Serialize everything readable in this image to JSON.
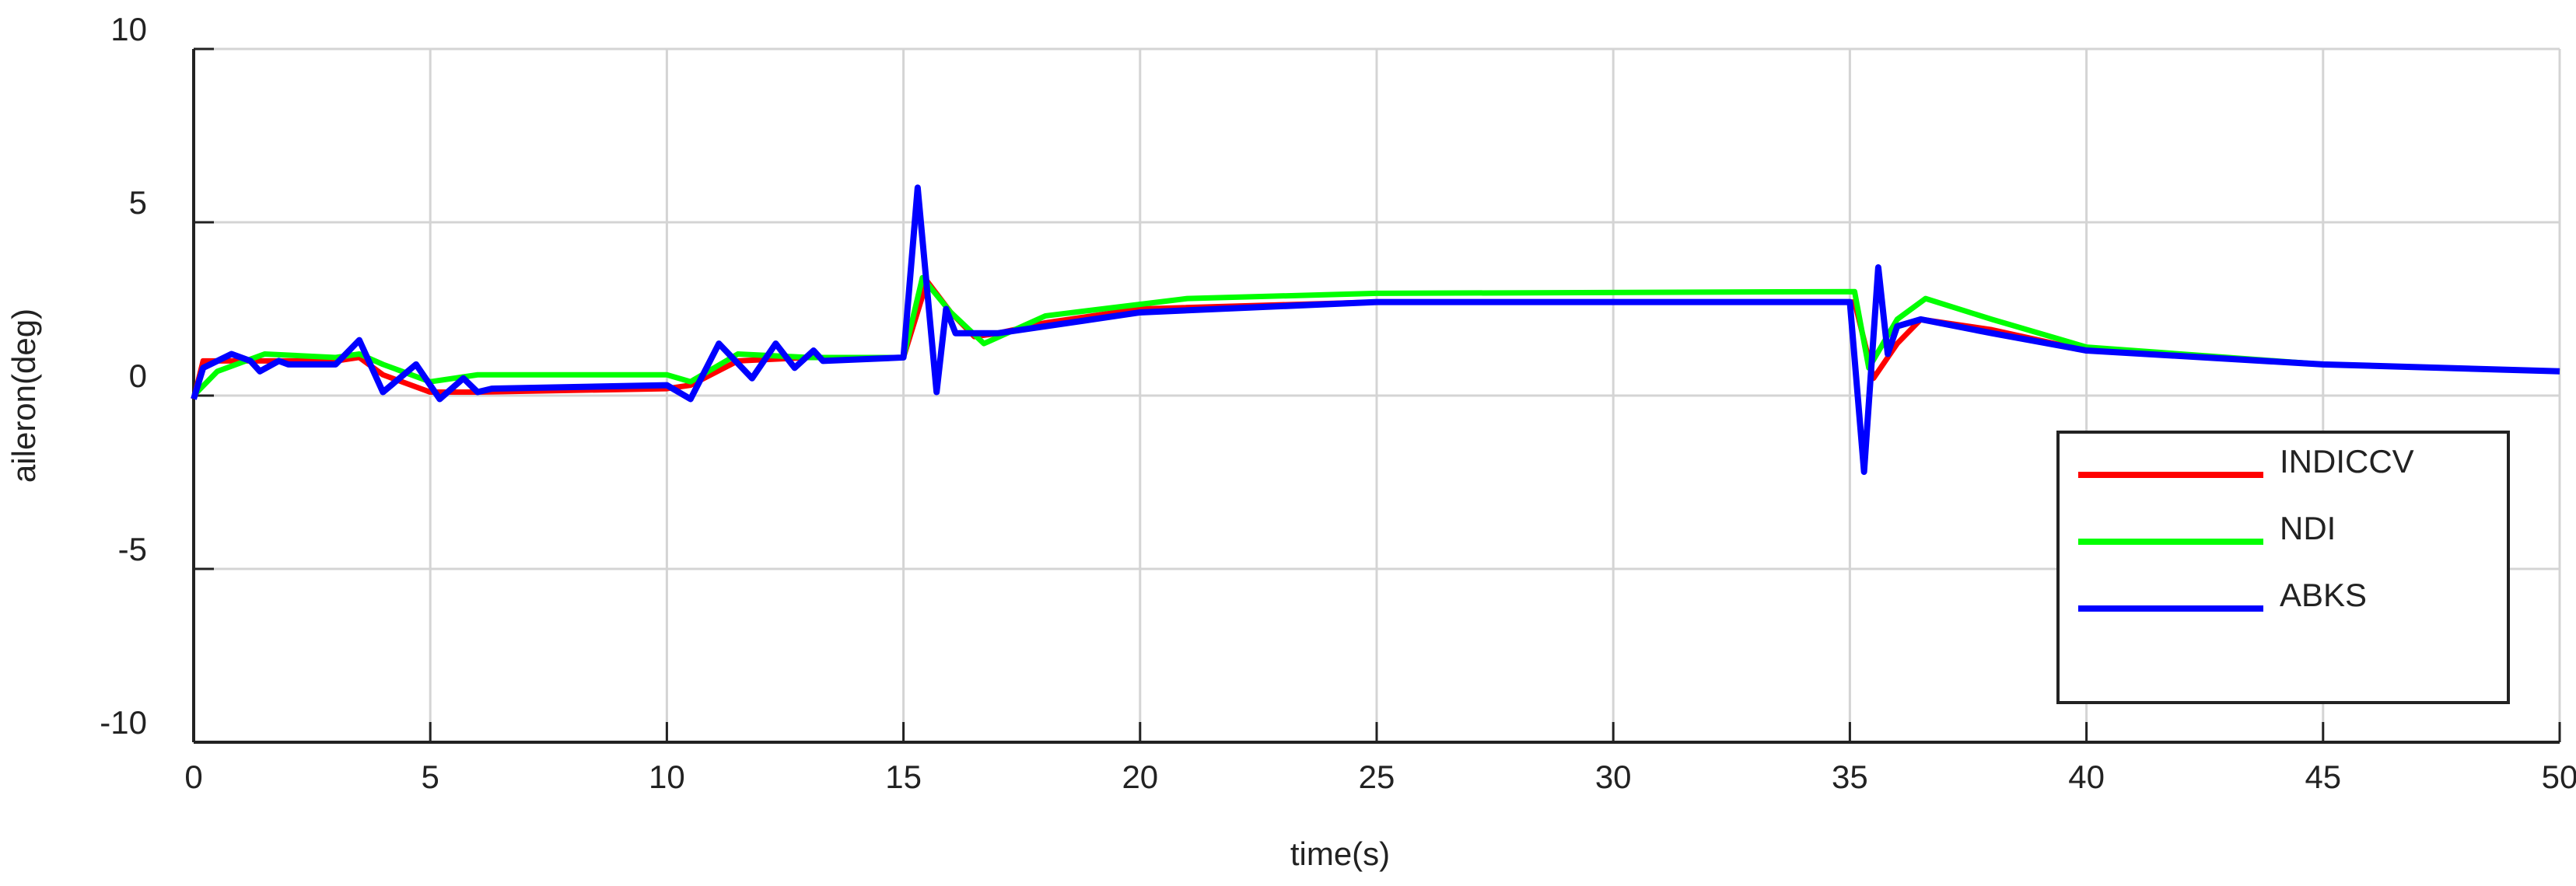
{
  "chart_data": {
    "type": "line",
    "xlabel": "time(s)",
    "ylabel": "aileron(deg)",
    "xlim": [
      0,
      50
    ],
    "xticks": [
      0,
      5,
      10,
      15,
      20,
      25,
      30,
      35,
      40,
      45,
      50
    ],
    "ylim": [
      -10,
      10
    ],
    "yticks": [
      -10,
      -5,
      0,
      5,
      10
    ],
    "grid": true,
    "legend": "lower right",
    "series": [
      {
        "name": "INDICCV",
        "color": "#ff0000",
        "x": [
          0,
          0.2,
          1,
          2,
          3,
          3.5,
          4,
          5,
          6,
          10,
          10.5,
          11.5,
          13,
          15,
          15.5,
          16,
          16.5,
          17,
          18,
          20,
          25,
          35.1,
          35.5,
          36,
          36.5,
          38,
          40,
          45,
          50
        ],
        "values": [
          -0.1,
          1.0,
          1.0,
          1.0,
          1.0,
          1.1,
          0.6,
          0.1,
          0.1,
          0.2,
          0.3,
          1.0,
          1.1,
          1.1,
          3.3,
          2.4,
          1.7,
          1.8,
          2.1,
          2.5,
          2.7,
          2.7,
          0.5,
          1.5,
          2.2,
          1.9,
          1.3,
          0.9,
          0.7
        ]
      },
      {
        "name": "NDI",
        "color": "#00ff00",
        "x": [
          0,
          0.5,
          1.5,
          3,
          3.5,
          4,
          5,
          6,
          10,
          10.5,
          11.5,
          13,
          15,
          15.4,
          16,
          16.7,
          18,
          21,
          25,
          35.1,
          35.4,
          36,
          36.6,
          38,
          40,
          45,
          50
        ],
        "values": [
          0,
          0.7,
          1.2,
          1.1,
          1.2,
          0.9,
          0.4,
          0.6,
          0.6,
          0.4,
          1.2,
          1.1,
          1.1,
          3.4,
          2.4,
          1.5,
          2.3,
          2.8,
          2.95,
          3.0,
          0.8,
          2.2,
          2.8,
          2.2,
          1.4,
          0.9,
          0.7
        ]
      },
      {
        "name": "ABKS",
        "color": "#0000ff",
        "x": [
          0,
          0.2,
          0.8,
          1.2,
          1.4,
          1.8,
          2,
          3,
          3.5,
          4,
          4.7,
          5.2,
          5.7,
          6,
          6.3,
          10,
          10.5,
          11.1,
          11.8,
          12.3,
          12.7,
          13.1,
          13.3,
          15,
          15.3,
          15.7,
          15.9,
          16.1,
          17,
          20,
          25,
          35,
          35.3,
          35.6,
          35.8,
          36,
          36.5,
          38,
          40,
          45,
          50
        ],
        "values": [
          -0.1,
          0.8,
          1.2,
          1.0,
          0.7,
          1.0,
          0.9,
          0.9,
          1.6,
          0.1,
          0.9,
          -0.1,
          0.5,
          0.1,
          0.2,
          0.3,
          -0.1,
          1.5,
          0.5,
          1.5,
          0.8,
          1.3,
          1.0,
          1.1,
          6.0,
          0.1,
          2.5,
          1.8,
          1.8,
          2.4,
          2.7,
          2.7,
          -2.2,
          3.7,
          1.2,
          2.0,
          2.2,
          1.8,
          1.3,
          0.9,
          0.7
        ]
      }
    ]
  }
}
